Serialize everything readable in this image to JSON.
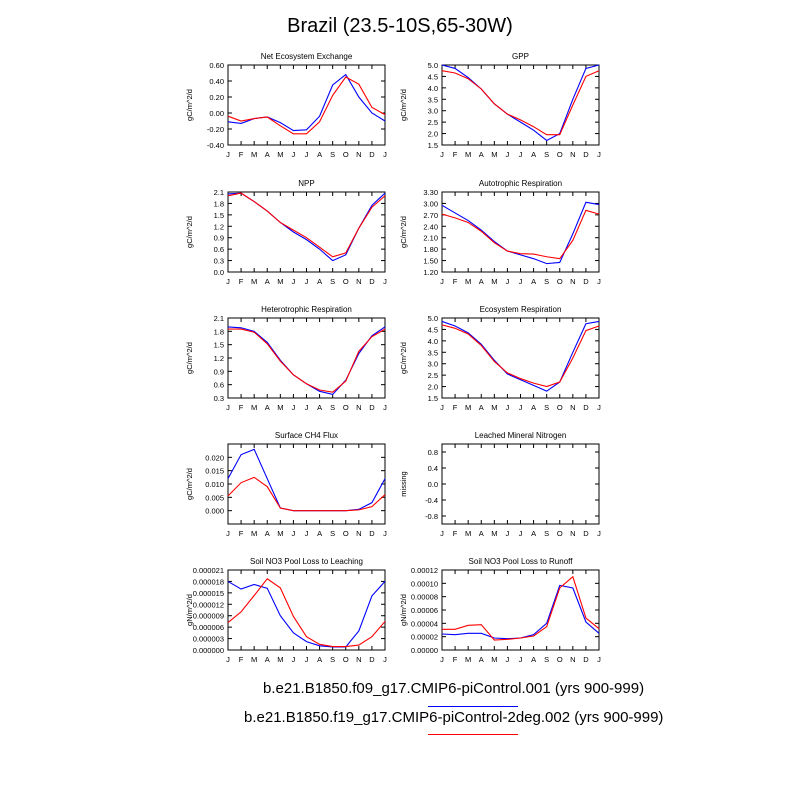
{
  "figure": {
    "title": "Brazil (23.5-10S,65-30W)",
    "month_labels": [
      "J",
      "F",
      "M",
      "A",
      "M",
      "J",
      "J",
      "A",
      "S",
      "O",
      "N",
      "D",
      "J"
    ]
  },
  "legend": [
    {
      "label": "b.e21.B1850.f09_g17.CMIP6-piControl.001 (yrs 900-999)",
      "color": "#0000ff"
    },
    {
      "label": "b.e21.B1850.f19_g17.CMIP6-piControl-2deg.002 (yrs 900-999)",
      "color": "#ff0000"
    }
  ],
  "chart_data": [
    {
      "type": "line",
      "title": "Net Ecosystem Exchange",
      "ylabel": "gC/m^2/d",
      "ylim": [
        -0.4,
        0.6
      ],
      "yticks": [
        "-0.40",
        "-0.20",
        "0.00",
        "0.20",
        "0.40",
        "0.60"
      ],
      "series": [
        {
          "color": "#0000ff",
          "values": [
            -0.11,
            -0.13,
            -0.07,
            -0.05,
            -0.12,
            -0.22,
            -0.21,
            -0.04,
            0.35,
            0.48,
            0.2,
            0.0,
            -0.1
          ]
        },
        {
          "color": "#ff0000",
          "values": [
            -0.04,
            -0.1,
            -0.07,
            -0.05,
            -0.16,
            -0.26,
            -0.26,
            -0.11,
            0.22,
            0.45,
            0.36,
            0.07,
            -0.02
          ]
        }
      ]
    },
    {
      "type": "line",
      "title": "GPP",
      "ylabel": "gC/m^2/d",
      "ylim": [
        1.5,
        5.0
      ],
      "yticks": [
        "1.5",
        "2.0",
        "2.5",
        "3.0",
        "3.5",
        "4.0",
        "4.5",
        "5.0"
      ],
      "series": [
        {
          "color": "#0000ff",
          "values": [
            5.0,
            4.85,
            4.45,
            3.95,
            3.3,
            2.85,
            2.5,
            2.15,
            1.7,
            2.0,
            3.5,
            4.85,
            5.0
          ]
        },
        {
          "color": "#ff0000",
          "values": [
            4.75,
            4.65,
            4.4,
            3.95,
            3.3,
            2.85,
            2.6,
            2.3,
            1.95,
            1.95,
            3.25,
            4.5,
            4.75
          ]
        }
      ]
    },
    {
      "type": "line",
      "title": "NPP",
      "ylabel": "gC/m^2/d",
      "ylim": [
        0.0,
        2.1
      ],
      "yticks": [
        "0.0",
        "0.3",
        "0.6",
        "0.9",
        "1.2",
        "1.5",
        "1.8",
        "2.1"
      ],
      "series": [
        {
          "color": "#0000ff",
          "values": [
            2.05,
            2.07,
            1.85,
            1.6,
            1.3,
            1.05,
            0.85,
            0.6,
            0.3,
            0.45,
            1.15,
            1.75,
            2.07
          ]
        },
        {
          "color": "#ff0000",
          "values": [
            2.0,
            2.07,
            1.85,
            1.6,
            1.3,
            1.1,
            0.9,
            0.65,
            0.4,
            0.5,
            1.15,
            1.7,
            2.0
          ]
        }
      ]
    },
    {
      "type": "line",
      "title": "Autotrophic Respiration",
      "ylabel": "gC/m^2/d",
      "ylim": [
        1.2,
        3.3
      ],
      "yticks": [
        "1.20",
        "1.50",
        "1.80",
        "2.10",
        "2.40",
        "2.70",
        "3.00",
        "3.30"
      ],
      "series": [
        {
          "color": "#0000ff",
          "values": [
            2.95,
            2.75,
            2.55,
            2.3,
            2.0,
            1.75,
            1.65,
            1.55,
            1.42,
            1.45,
            2.2,
            3.03,
            2.97
          ]
        },
        {
          "color": "#ff0000",
          "values": [
            2.72,
            2.62,
            2.5,
            2.27,
            1.97,
            1.75,
            1.68,
            1.67,
            1.6,
            1.55,
            2.03,
            2.82,
            2.72
          ]
        }
      ]
    },
    {
      "type": "line",
      "title": "Heterotrophic Respiration",
      "ylabel": "gC/m^2/d",
      "ylim": [
        0.3,
        2.1
      ],
      "yticks": [
        "0.3",
        "0.6",
        "0.9",
        "1.2",
        "1.5",
        "1.8",
        "2.1"
      ],
      "series": [
        {
          "color": "#0000ff",
          "values": [
            1.9,
            1.88,
            1.8,
            1.55,
            1.15,
            0.82,
            0.62,
            0.45,
            0.38,
            0.7,
            1.3,
            1.7,
            1.9
          ]
        },
        {
          "color": "#ff0000",
          "values": [
            1.85,
            1.85,
            1.78,
            1.52,
            1.13,
            0.82,
            0.62,
            0.48,
            0.43,
            0.68,
            1.35,
            1.68,
            1.85
          ]
        }
      ]
    },
    {
      "type": "line",
      "title": "Ecosystem Respiration",
      "ylabel": "gC/m^2/d",
      "ylim": [
        1.5,
        5.0
      ],
      "yticks": [
        "1.5",
        "2.0",
        "2.5",
        "3.0",
        "3.5",
        "4.0",
        "4.5",
        "5.0"
      ],
      "series": [
        {
          "color": "#0000ff",
          "values": [
            4.85,
            4.65,
            4.35,
            3.85,
            3.15,
            2.55,
            2.3,
            2.05,
            1.8,
            2.2,
            3.5,
            4.75,
            4.85
          ]
        },
        {
          "color": "#ff0000",
          "values": [
            4.7,
            4.55,
            4.3,
            3.8,
            3.1,
            2.6,
            2.35,
            2.15,
            2.0,
            2.2,
            3.25,
            4.45,
            4.65
          ]
        }
      ]
    },
    {
      "type": "line",
      "title": "Surface CH4 Flux",
      "ylabel": "gC/m^2/d",
      "ylim": [
        -0.005,
        0.025
      ],
      "yticks": [
        "0.000",
        "0.005",
        "0.010",
        "0.015",
        "0.020"
      ],
      "ytick_values": [
        0,
        0.005,
        0.01,
        0.015,
        0.02
      ],
      "series": [
        {
          "color": "#0000ff",
          "values": [
            0.012,
            0.021,
            0.023,
            0.012,
            0.001,
            0.0,
            0.0,
            0.0,
            0.0,
            0.0,
            0.0005,
            0.003,
            0.012
          ]
        },
        {
          "color": "#ff0000",
          "values": [
            0.0055,
            0.0105,
            0.0125,
            0.009,
            0.001,
            0.0,
            0.0,
            0.0,
            0.0,
            0.0,
            0.0003,
            0.0015,
            0.006
          ]
        }
      ]
    },
    {
      "type": "line",
      "title": "Leached Mineral Nitrogen",
      "ylabel": "missing",
      "ylim": [
        -1.0,
        1.0
      ],
      "yticks": [
        "-0.8",
        "-0.4",
        "0.0",
        "0.4",
        "0.8"
      ],
      "ytick_values": [
        -0.8,
        -0.4,
        0.0,
        0.4,
        0.8
      ],
      "series": []
    },
    {
      "type": "line",
      "title": "Soil NO3 Pool Loss to Leaching",
      "ylabel": "gN/m^2/d",
      "ylim": [
        0,
        2.1e-05
      ],
      "yticks": [
        "0.000000",
        "0.000003",
        "0.000006",
        "0.000009",
        "0.000012",
        "0.000015",
        "0.000018",
        "0.000021"
      ],
      "series": [
        {
          "color": "#0000ff",
          "values": [
            1.8e-05,
            1.6e-05,
            1.72e-05,
            1.62e-05,
            9e-06,
            4.5e-06,
            2.2e-06,
            1.1e-06,
            8e-07,
            8e-07,
            5e-06,
            1.42e-05,
            1.8e-05
          ]
        },
        {
          "color": "#ff0000",
          "values": [
            7.2e-06,
            1e-05,
            1.43e-05,
            1.87e-05,
            1.63e-05,
            8.8e-06,
            3.5e-06,
            1.5e-06,
            9e-07,
            9e-07,
            1.3e-06,
            3.5e-06,
            7.5e-06
          ]
        }
      ]
    },
    {
      "type": "line",
      "title": "Soil NO3 Pool Loss to Runoff",
      "ylabel": "gN/m^2/d",
      "ylim": [
        0,
        0.00012
      ],
      "yticks": [
        "0.00000",
        "0.00002",
        "0.00004",
        "0.00006",
        "0.00008",
        "0.00010",
        "0.00012"
      ],
      "series": [
        {
          "color": "#0000ff",
          "values": [
            2.4e-05,
            2.3e-05,
            2.5e-05,
            2.5e-05,
            1.8e-05,
            1.7e-05,
            1.8e-05,
            2.3e-05,
            4e-05,
            9.7e-05,
            9.3e-05,
            4.2e-05,
            2.5e-05
          ]
        },
        {
          "color": "#ff0000",
          "values": [
            3.1e-05,
            3.1e-05,
            3.7e-05,
            3.8e-05,
            1.5e-05,
            1.6e-05,
            1.8e-05,
            2.1e-05,
            3.5e-05,
            9.3e-05,
            0.00011,
            4.8e-05,
            3.2e-05
          ]
        }
      ]
    }
  ]
}
